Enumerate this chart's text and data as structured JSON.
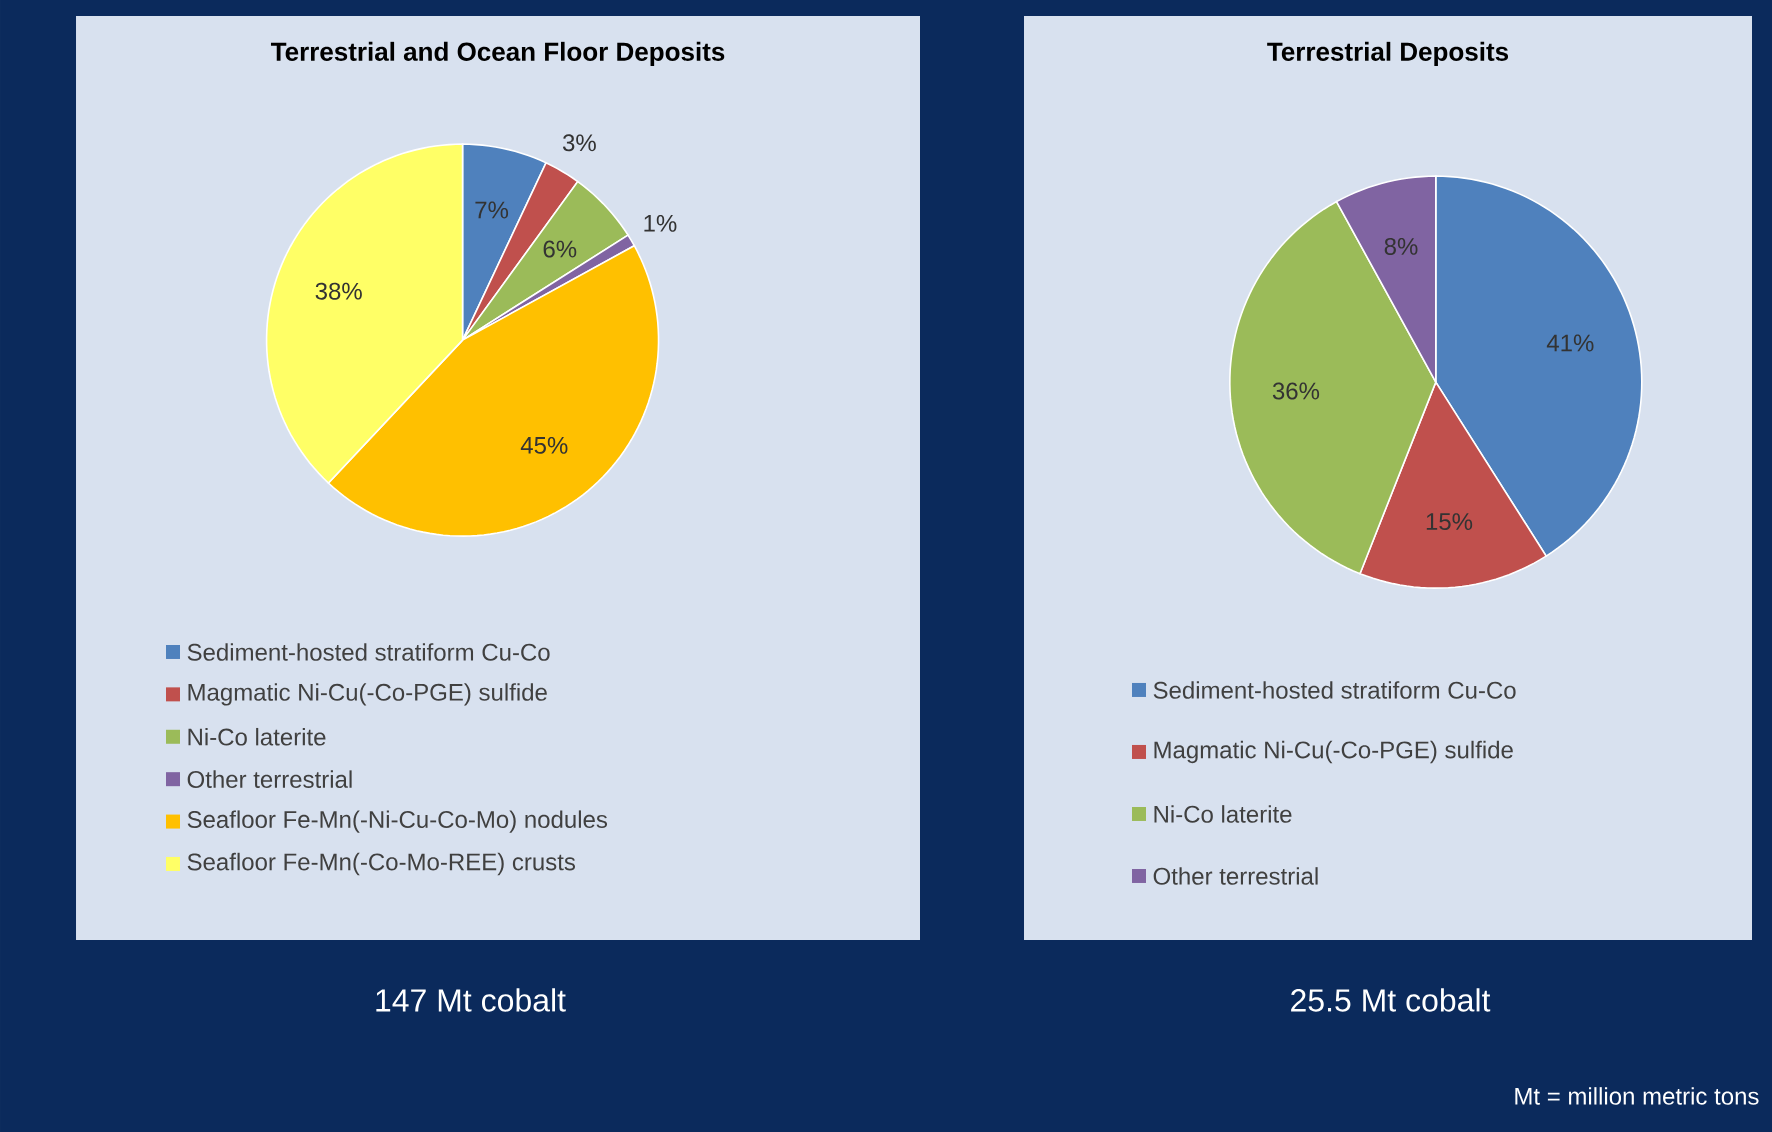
{
  "chart_data": [
    {
      "type": "pie",
      "title": "Terrestrial and Ocean Floor Deposits",
      "categories": [
        "Sediment-hosted stratiform Cu-Co",
        "Magmatic Ni-Cu(-Co-PGE) sulfide",
        "Ni-Co laterite",
        "Other terrestrial",
        "Seafloor Fe-Mn(-Ni-Cu-Co-Mo) nodules",
        "Seafloor Fe-Mn(-Co-Mo-REE) crusts"
      ],
      "values": [
        7,
        3,
        6,
        1,
        45,
        38
      ],
      "colors": [
        "#4f81bd",
        "#c0504d",
        "#9bbb59",
        "#8064a2",
        "#ffc000",
        "#ffff66"
      ],
      "value_labels": [
        "7%",
        "3%",
        "6%",
        "1%",
        "45%",
        "38%"
      ],
      "legend": "bottom",
      "annotations": [
        "147 Mt cobalt"
      ]
    },
    {
      "type": "pie",
      "title": "Terrestrial Deposits",
      "categories": [
        "Sediment-hosted stratiform Cu-Co",
        "Magmatic Ni-Cu(-Co-PGE) sulfide",
        "Ni-Co laterite",
        "Other terrestrial"
      ],
      "values": [
        41,
        15,
        36,
        8
      ],
      "colors": [
        "#4f81bd",
        "#c0504d",
        "#9bbb59",
        "#8064a2"
      ],
      "value_labels": [
        "41%",
        "15%",
        "36%",
        "8%"
      ],
      "legend": "bottom",
      "annotations": [
        "25.5 Mt cobalt",
        "Mt = million metric tons"
      ]
    }
  ]
}
